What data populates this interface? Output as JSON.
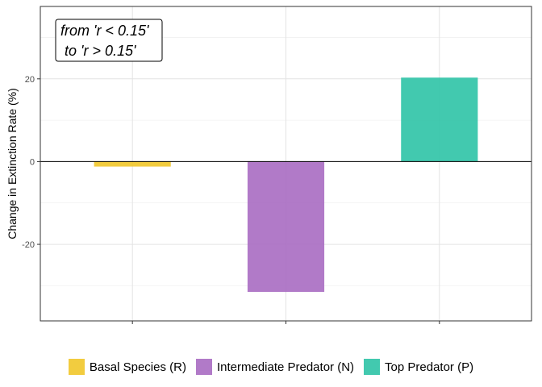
{
  "chart_data": {
    "type": "bar",
    "categories": [
      "Basal Species (R)",
      "Intermediate Predator (N)",
      "Top Predator (P)"
    ],
    "values": [
      -1.2,
      -31.5,
      20.3
    ],
    "colors": [
      "#F1C62A",
      "#A86BC2",
      "#2EC3A6"
    ],
    "title": "",
    "xlabel": "",
    "ylabel": "Change in Extinction Rate (%)",
    "ylim": [
      -38.5,
      37.5
    ],
    "yticks": [
      -20,
      0,
      20
    ],
    "yticks_labels": [
      "-20",
      "0",
      "20"
    ],
    "grid": true,
    "legend": "bottom",
    "annotation": [
      "from 'r < 0.15'",
      " to 'r > 0.15'"
    ]
  }
}
